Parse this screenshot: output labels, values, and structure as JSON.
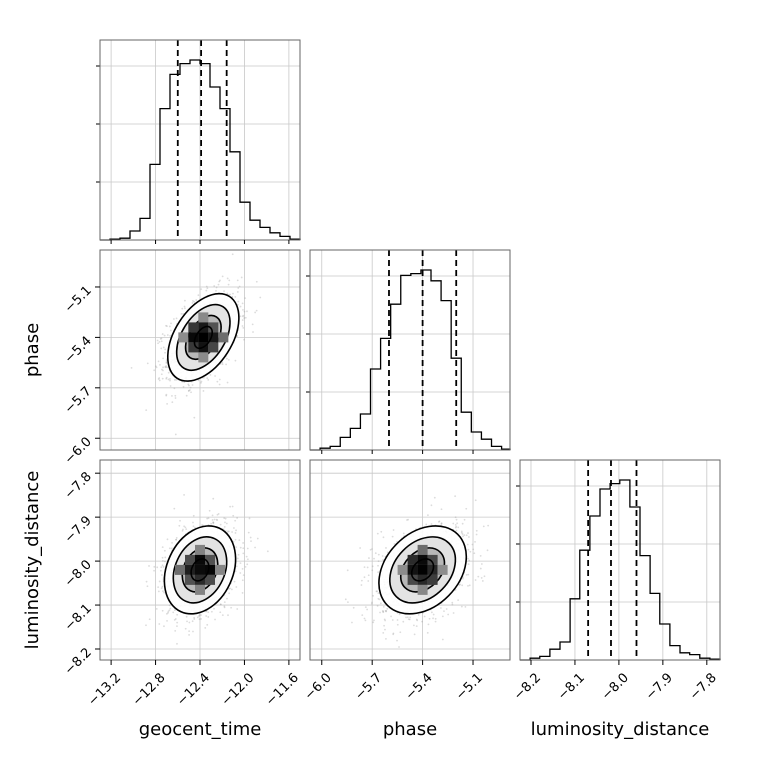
{
  "chart_data": {
    "type": "corner",
    "parameters": [
      "geocent_time",
      "phase",
      "luminosity_distance"
    ],
    "axes": {
      "geocent_time": {
        "range": [
          -13.3,
          -11.5
        ],
        "ticks": [
          -13.2,
          -12.8,
          -12.4,
          -12.0,
          -11.6
        ],
        "tick_labels": [
          "−13.2",
          "−12.8",
          "−12.4",
          "−12.0",
          "−11.6"
        ],
        "quantiles": [
          -12.6,
          -12.39,
          -12.16
        ]
      },
      "phase": {
        "range": [
          -6.07,
          -4.88
        ],
        "ticks": [
          -6.0,
          -5.7,
          -5.4,
          -5.1
        ],
        "tick_labels": [
          "−6.0",
          "−5.7",
          "−5.4",
          "−5.1"
        ],
        "quantiles": [
          -5.6,
          -5.4,
          -5.2
        ]
      },
      "luminosity_distance": {
        "range": [
          -8.225,
          -7.77
        ],
        "ticks": [
          -8.2,
          -8.1,
          -8.0,
          -7.9,
          -7.8
        ],
        "tick_labels": [
          "−8.2",
          "−8.1",
          "−8.0",
          "−7.9",
          "−7.8"
        ],
        "quantiles": [
          -8.07,
          -8.018,
          -7.96
        ]
      }
    },
    "histograms": {
      "geocent_time": {
        "bin_edges": [
          -13.3,
          -13.21,
          -13.12,
          -13.03,
          -12.94,
          -12.85,
          -12.76,
          -12.67,
          -12.58,
          -12.49,
          -12.4,
          -12.31,
          -12.22,
          -12.13,
          -12.04,
          -11.95,
          -11.86,
          -11.77,
          -11.68,
          -11.59,
          -11.5
        ],
        "counts": [
          0.0,
          0.005,
          0.01,
          0.05,
          0.12,
          0.42,
          0.73,
          0.92,
          0.98,
          1.0,
          0.98,
          0.85,
          0.73,
          0.49,
          0.21,
          0.11,
          0.07,
          0.04,
          0.02,
          0.005
        ]
      },
      "phase": {
        "bin_edges": [
          -6.07,
          -6.01,
          -5.95,
          -5.89,
          -5.83,
          -5.77,
          -5.71,
          -5.65,
          -5.59,
          -5.53,
          -5.47,
          -5.41,
          -5.35,
          -5.29,
          -5.23,
          -5.17,
          -5.11,
          -5.05,
          -4.99,
          -4.93,
          -4.88
        ],
        "counts": [
          0.0,
          0.01,
          0.02,
          0.07,
          0.12,
          0.2,
          0.45,
          0.62,
          0.81,
          0.97,
          0.98,
          1.0,
          0.94,
          0.83,
          0.51,
          0.21,
          0.1,
          0.06,
          0.02,
          0.005
        ]
      },
      "luminosity_distance": {
        "bin_edges": [
          -8.225,
          -8.202,
          -8.18,
          -8.157,
          -8.134,
          -8.111,
          -8.089,
          -8.066,
          -8.043,
          -8.02,
          -7.998,
          -7.975,
          -7.952,
          -7.929,
          -7.907,
          -7.884,
          -7.861,
          -7.839,
          -7.816,
          -7.793,
          -7.77
        ],
        "counts": [
          0.0,
          0.01,
          0.02,
          0.06,
          0.1,
          0.34,
          0.61,
          0.8,
          0.95,
          0.98,
          1.0,
          0.85,
          0.58,
          0.37,
          0.2,
          0.08,
          0.04,
          0.03,
          0.01,
          0.005
        ]
      }
    },
    "joint": {
      "geocent_time|phase": {
        "mean": [
          -12.37,
          -5.4
        ],
        "sd": [
          0.16,
          0.13
        ],
        "corr": 0.45
      },
      "geocent_time|luminosity_distance": {
        "mean": [
          -12.4,
          -8.02
        ],
        "sd": [
          0.16,
          0.05
        ],
        "corr": 0.25
      },
      "phase|luminosity_distance": {
        "mean": [
          -5.4,
          -8.02
        ],
        "sd": [
          0.13,
          0.05
        ],
        "corr": 0.3
      }
    },
    "contour_levels_sigma": [
      0.5,
      1.0,
      1.5,
      2.0
    ],
    "grid": true,
    "quantile_line_style": "dashed"
  }
}
